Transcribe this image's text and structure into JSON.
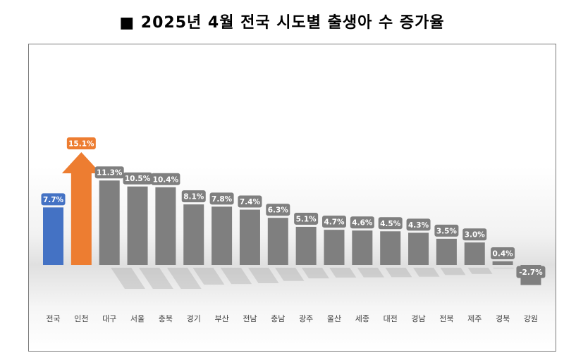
{
  "title": "■ 2025년 4월 전국 시도별 출생아 수 증가율",
  "colors": {
    "national": "#4472c4",
    "highlight": "#ed7d31",
    "regular": "#7f7f7f",
    "label_text": "#ffffff"
  },
  "chart_data": {
    "type": "bar",
    "title": "■ 2025년 4월 전국 시도별 출생아 수 증가율",
    "xlabel": "",
    "ylabel": "",
    "unit": "%",
    "categories": [
      "전국",
      "인천",
      "대구",
      "서울",
      "충북",
      "경기",
      "부산",
      "전남",
      "충남",
      "광주",
      "울산",
      "세종",
      "대전",
      "경남",
      "전북",
      "제주",
      "경북",
      "강원"
    ],
    "values": [
      7.7,
      15.1,
      11.3,
      10.5,
      10.4,
      8.1,
      7.8,
      7.4,
      6.3,
      5.1,
      4.7,
      4.6,
      4.5,
      4.3,
      3.5,
      3.0,
      0.4,
      -2.7
    ],
    "value_labels": [
      "7.7%",
      "15.1%",
      "11.3%",
      "10.5%",
      "10.4%",
      "8.1%",
      "7.8%",
      "7.4%",
      "6.3%",
      "5.1%",
      "4.7%",
      "4.6%",
      "4.5%",
      "4.3%",
      "3.5%",
      "3.0%",
      "0.4%",
      "-2.7%"
    ],
    "bar_styles": [
      "national",
      "arrow-highlight",
      "regular",
      "regular",
      "regular",
      "regular",
      "regular",
      "regular",
      "regular",
      "regular",
      "regular",
      "regular",
      "regular",
      "regular",
      "regular",
      "regular",
      "regular",
      "regular"
    ],
    "grid": false,
    "legend": "none"
  }
}
